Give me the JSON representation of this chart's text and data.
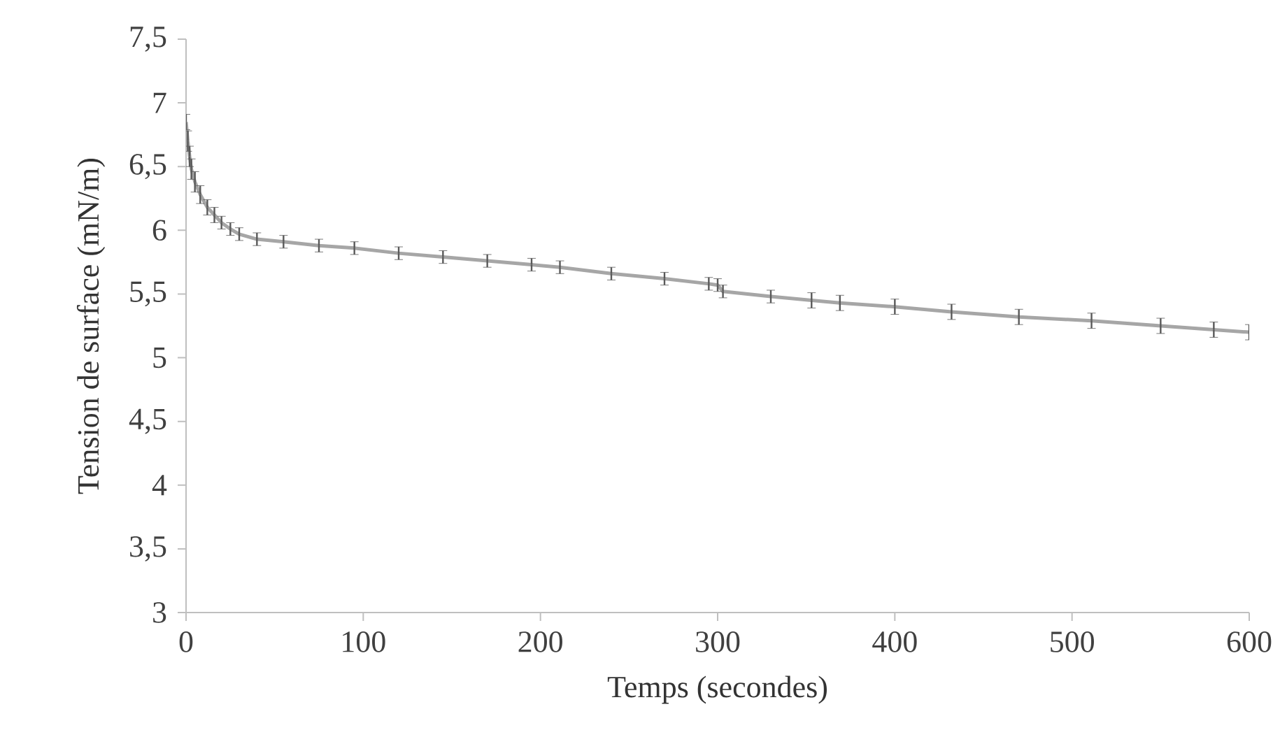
{
  "chart_data": {
    "type": "line",
    "xlabel": "Temps (secondes)",
    "ylabel": "Tension de surface (mN/m)",
    "x": [
      0,
      1,
      2,
      3,
      5,
      8,
      12,
      16,
      20,
      25,
      30,
      40,
      55,
      75,
      95,
      120,
      145,
      170,
      195,
      211,
      240,
      270,
      295,
      300,
      303,
      330,
      353,
      369,
      400,
      432,
      470,
      511,
      550,
      580,
      600
    ],
    "series": [
      {
        "color": "#a6a6a6",
        "values": [
          6.85,
          6.7,
          6.58,
          6.48,
          6.38,
          6.28,
          6.18,
          6.12,
          6.06,
          6.01,
          5.97,
          5.93,
          5.91,
          5.88,
          5.86,
          5.82,
          5.79,
          5.76,
          5.73,
          5.71,
          5.66,
          5.62,
          5.58,
          5.57,
          5.52,
          5.48,
          5.45,
          5.43,
          5.4,
          5.36,
          5.32,
          5.29,
          5.25,
          5.22,
          5.2
        ],
        "errors": [
          0.06,
          0.08,
          0.08,
          0.08,
          0.08,
          0.07,
          0.06,
          0.06,
          0.05,
          0.05,
          0.05,
          0.05,
          0.05,
          0.05,
          0.05,
          0.05,
          0.05,
          0.05,
          0.05,
          0.05,
          0.05,
          0.05,
          0.05,
          0.05,
          0.05,
          0.05,
          0.06,
          0.06,
          0.06,
          0.06,
          0.06,
          0.06,
          0.06,
          0.06,
          0.06
        ]
      }
    ],
    "xlim": [
      0,
      600
    ],
    "xticks": [
      0,
      100,
      200,
      300,
      400,
      500,
      600
    ],
    "ylim": [
      3,
      7.5
    ],
    "yticks": [
      3,
      {
        "value": 3.5,
        "label": "3,5"
      },
      4,
      {
        "value": 4.5,
        "label": "4,5"
      },
      5,
      {
        "value": 5.5,
        "label": "5,5"
      },
      6,
      {
        "value": 6.5,
        "label": "6,5"
      },
      7,
      {
        "value": 7.5,
        "label": "7,5"
      }
    ],
    "marker": "none",
    "line_style": "solid",
    "grid": false
  }
}
